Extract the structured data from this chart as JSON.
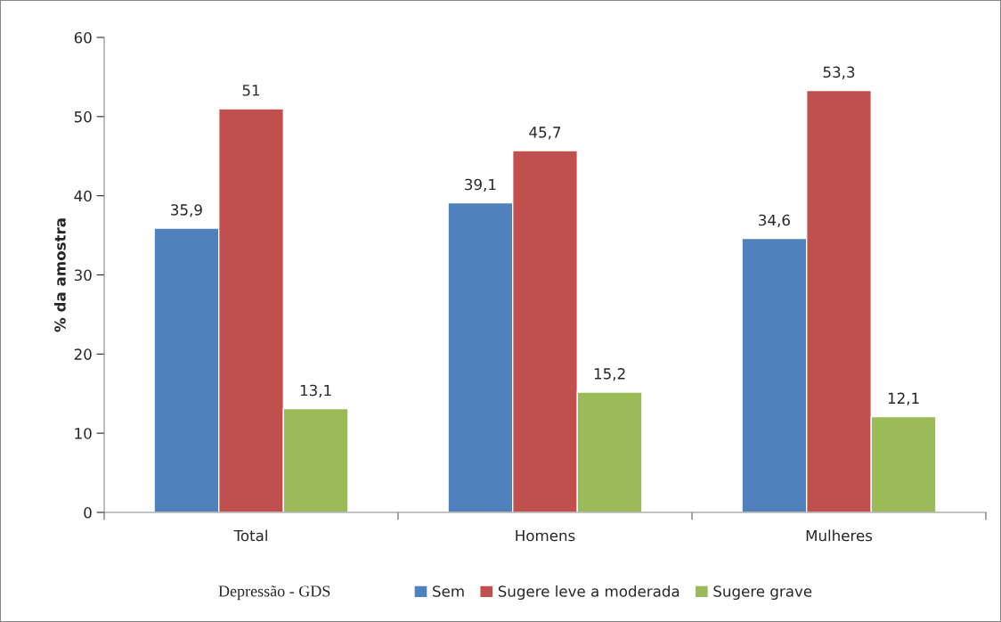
{
  "chart_data": {
    "type": "bar",
    "ylabel": "% da amostra",
    "legend_title": "Depressão - GDS",
    "categories": [
      "Total",
      "Homens",
      "Mulheres"
    ],
    "series": [
      {
        "name": "Sem",
        "color": "#4f81bd",
        "values": [
          35.9,
          39.1,
          34.6
        ],
        "value_labels": [
          "35,9",
          "39,1",
          "34,6"
        ]
      },
      {
        "name": "Sugere leve a moderada",
        "color": "#c0504d",
        "values": [
          51,
          45.7,
          53.3
        ],
        "value_labels": [
          "51",
          "45,7",
          "53,3"
        ]
      },
      {
        "name": "Sugere grave",
        "color": "#9bbb59",
        "values": [
          13.1,
          15.2,
          12.1
        ],
        "value_labels": [
          "13,1",
          "15,2",
          "12,1"
        ]
      }
    ],
    "ylim": [
      0,
      60
    ],
    "yticks": [
      0,
      10,
      20,
      30,
      40,
      50,
      60
    ],
    "grid": false,
    "legend": "bottom"
  }
}
